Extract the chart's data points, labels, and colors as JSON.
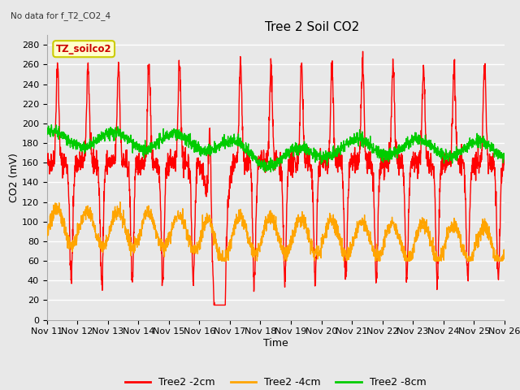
{
  "title": "Tree 2 Soil CO2",
  "subtitle": "No data for f_T2_CO2_4",
  "xlabel": "Time",
  "ylabel": "CO2 (mV)",
  "ylim": [
    0,
    290
  ],
  "yticks": [
    0,
    20,
    40,
    60,
    80,
    100,
    120,
    140,
    160,
    180,
    200,
    220,
    240,
    260,
    280
  ],
  "xtick_labels": [
    "Nov 11",
    "Nov 12",
    "Nov 13",
    "Nov 14",
    "Nov 15",
    "Nov 16",
    "Nov 17",
    "Nov 18",
    "Nov 19",
    "Nov 20",
    "Nov 21",
    "Nov 22",
    "Nov 23",
    "Nov 24",
    "Nov 25",
    "Nov 26"
  ],
  "legend_labels": [
    "Tree2 -2cm",
    "Tree2 -4cm",
    "Tree2 -8cm"
  ],
  "legend_colors": [
    "#ff0000",
    "#ffa500",
    "#00cc00"
  ],
  "box_label": "TZ_soilco2",
  "fig_bg_color": "#e8e8e8",
  "plot_bg_color": "#e8e8e8",
  "grid_color": "#ffffff",
  "line_width": 1.0,
  "title_fontsize": 11,
  "axis_fontsize": 8,
  "legend_fontsize": 9
}
